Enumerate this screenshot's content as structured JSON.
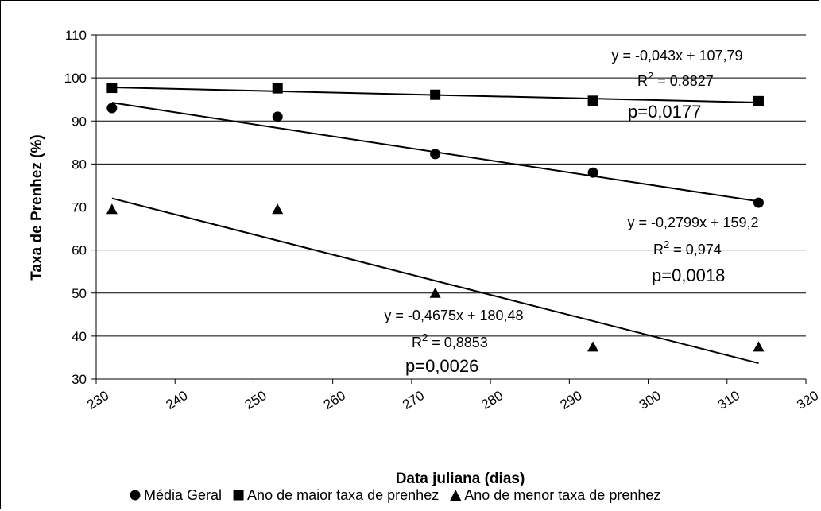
{
  "chart_data": {
    "type": "scatter",
    "xlabel": "Data juliana (dias)",
    "ylabel": "Taxa de Prenhez  (%)",
    "xlim": [
      230,
      320
    ],
    "ylim": [
      30,
      110
    ],
    "x_ticks": [
      230,
      240,
      250,
      260,
      270,
      280,
      290,
      300,
      310,
      320
    ],
    "y_ticks": [
      30,
      40,
      50,
      60,
      70,
      80,
      90,
      100,
      110
    ],
    "grid": "horizontal",
    "legend_position": "bottom",
    "series": [
      {
        "name": "Média Geral",
        "marker": "circle",
        "x": [
          232,
          253,
          273,
          293,
          314
        ],
        "y": [
          93,
          91,
          82.3,
          78,
          71
        ],
        "trendline": {
          "slope": -0.2799,
          "intercept": 159.2
        },
        "equation": "y = -0,2799x + 159,2",
        "r2_prefix": "R",
        "r2_value": " = 0,974",
        "p_value": "p=0,0018"
      },
      {
        "name": "Ano de maior taxa de prenhez",
        "marker": "square",
        "x": [
          232,
          253,
          273,
          293,
          314
        ],
        "y": [
          97.7,
          97.6,
          96.1,
          94.7,
          94.6
        ],
        "trendline": {
          "slope": -0.043,
          "intercept": 107.79
        },
        "equation": "y = -0,043x + 107,79",
        "r2_prefix": "R",
        "r2_value": " = 0,8827",
        "p_value": "p=0,0177"
      },
      {
        "name": "Ano de menor taxa de prenhez",
        "marker": "triangle",
        "x": [
          232,
          253,
          273,
          293,
          314
        ],
        "y": [
          69.5,
          69.5,
          50,
          37.5,
          37.5
        ],
        "trendline": {
          "slope": -0.4675,
          "intercept": 180.48
        },
        "equation": "y = -0,4675x + 180,48",
        "r2_prefix": "R",
        "r2_value": " = 0,8853",
        "p_value": "p=0,0026"
      }
    ]
  }
}
